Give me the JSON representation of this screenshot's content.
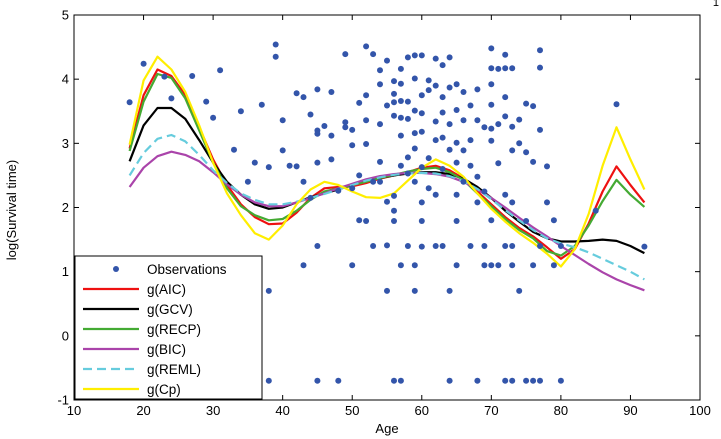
{
  "corner_mark": "1",
  "chart_data": {
    "type": "scatter",
    "title": "",
    "xlabel": "Age",
    "ylabel": "log(Survival time)",
    "xlim": [
      10,
      100
    ],
    "ylim": [
      -1,
      5
    ],
    "xticks": [
      "10",
      "20",
      "30",
      "40",
      "50",
      "60",
      "70",
      "80",
      "90",
      "100"
    ],
    "yticks": [
      "-1",
      "0",
      "1",
      "2",
      "3",
      "4",
      "5"
    ],
    "grid": false,
    "legend_position": "bottom-left",
    "colors": {
      "Observations": "#3355aa",
      "g(AIC)": "#ee1111",
      "g(GCV)": "#000000",
      "g(RECP)": "#44aa33",
      "g(BIC)": "#aa44aa",
      "g(REML)": "#66ccdd",
      "g(Cp)": "#ffee00"
    },
    "scatter": {
      "name": "Observations",
      "points": [
        [
          18,
          3.64
        ],
        [
          20,
          4.24
        ],
        [
          23,
          4.04
        ],
        [
          24,
          3.7
        ],
        [
          27,
          4.05
        ],
        [
          29,
          3.65
        ],
        [
          30,
          3.4
        ],
        [
          31,
          4.14
        ],
        [
          33,
          2.9
        ],
        [
          34,
          3.5
        ],
        [
          35,
          2.4
        ],
        [
          36,
          2.7
        ],
        [
          37,
          3.6
        ],
        [
          38,
          2.63
        ],
        [
          38,
          -0.7
        ],
        [
          38,
          0.7
        ],
        [
          39,
          4.54
        ],
        [
          39,
          4.35
        ],
        [
          40,
          2.89
        ],
        [
          40,
          3.36
        ],
        [
          41,
          2.65
        ],
        [
          42,
          2.64
        ],
        [
          42,
          3.78
        ],
        [
          43,
          3.72
        ],
        [
          43,
          1.1
        ],
        [
          43,
          2.4
        ],
        [
          44,
          2.15
        ],
        [
          44,
          3.45
        ],
        [
          45,
          3.84
        ],
        [
          45,
          3.2
        ],
        [
          45,
          3.15
        ],
        [
          45,
          2.7
        ],
        [
          45,
          1.4
        ],
        [
          45,
          -0.7
        ],
        [
          46,
          3.27
        ],
        [
          47,
          3.12
        ],
        [
          47,
          2.75
        ],
        [
          47,
          3.8
        ],
        [
          48,
          2.26
        ],
        [
          48,
          -0.7
        ],
        [
          49,
          4.39
        ],
        [
          49,
          3.33
        ],
        [
          49,
          3.25
        ],
        [
          50,
          3.21
        ],
        [
          50,
          2.97
        ],
        [
          50,
          2.3
        ],
        [
          50,
          1.1
        ],
        [
          51,
          3.63
        ],
        [
          51,
          2.5
        ],
        [
          51,
          1.8
        ],
        [
          52,
          4.51
        ],
        [
          52,
          3.75
        ],
        [
          52,
          3.36
        ],
        [
          52,
          2.99
        ],
        [
          52,
          1.79
        ],
        [
          53,
          4.39
        ],
        [
          53,
          2.4
        ],
        [
          53,
          1.4
        ],
        [
          54,
          4.14
        ],
        [
          54,
          3.92
        ],
        [
          54,
          3.3
        ],
        [
          54,
          2.71
        ],
        [
          54,
          2.4
        ],
        [
          55,
          4.29
        ],
        [
          55,
          3.59
        ],
        [
          55,
          2.09
        ],
        [
          55,
          1.41
        ],
        [
          55,
          0.7
        ],
        [
          56,
          3.97
        ],
        [
          56,
          3.77
        ],
        [
          56,
          3.64
        ],
        [
          56,
          3.43
        ],
        [
          56,
          2.18
        ],
        [
          56,
          1.95
        ],
        [
          56,
          1.79
        ],
        [
          56,
          -0.7
        ],
        [
          57,
          4.16
        ],
        [
          57,
          3.93
        ],
        [
          57,
          3.66
        ],
        [
          57,
          3.4
        ],
        [
          57,
          3.12
        ],
        [
          57,
          2.65
        ],
        [
          57,
          1.1
        ],
        [
          57,
          -0.7
        ],
        [
          58,
          4.34
        ],
        [
          58,
          3.65
        ],
        [
          58,
          3.38
        ],
        [
          58,
          2.78
        ],
        [
          58,
          2.53
        ],
        [
          58,
          1.4
        ],
        [
          59,
          4.37
        ],
        [
          59,
          4.01
        ],
        [
          59,
          3.51
        ],
        [
          59,
          3.16
        ],
        [
          59,
          2.92
        ],
        [
          59,
          2.4
        ],
        [
          59,
          1.1
        ],
        [
          59,
          0.7
        ],
        [
          60,
          4.37
        ],
        [
          60,
          3.75
        ],
        [
          60,
          3.47
        ],
        [
          60,
          3.18
        ],
        [
          60,
          2.63
        ],
        [
          60,
          2.08
        ],
        [
          60,
          1.79
        ],
        [
          60,
          1.39
        ],
        [
          61,
          3.98
        ],
        [
          61,
          3.83
        ],
        [
          61,
          2.77
        ],
        [
          61,
          2.3
        ],
        [
          62,
          4.32
        ],
        [
          62,
          3.9
        ],
        [
          62,
          3.34
        ],
        [
          62,
          3.05
        ],
        [
          62,
          2.2
        ],
        [
          62,
          1.4
        ],
        [
          63,
          4.22
        ],
        [
          63,
          3.72
        ],
        [
          63,
          3.48
        ],
        [
          63,
          3.09
        ],
        [
          63,
          2.6
        ],
        [
          63,
          1.4
        ],
        [
          64,
          4.34
        ],
        [
          64,
          3.87
        ],
        [
          64,
          3.3
        ],
        [
          64,
          2.9
        ],
        [
          64,
          0.7
        ],
        [
          64,
          -0.7
        ],
        [
          65,
          3.92
        ],
        [
          65,
          3.52
        ],
        [
          65,
          3.01
        ],
        [
          65,
          2.7
        ],
        [
          65,
          2.2
        ],
        [
          65,
          1.79
        ],
        [
          65,
          1.1
        ],
        [
          66,
          3.8
        ],
        [
          66,
          3.36
        ],
        [
          66,
          2.89
        ],
        [
          66,
          2.4
        ],
        [
          67,
          3.59
        ],
        [
          67,
          3.05
        ],
        [
          67,
          2.65
        ],
        [
          67,
          1.4
        ],
        [
          68,
          3.84
        ],
        [
          68,
          3.36
        ],
        [
          68,
          2.48
        ],
        [
          68,
          2.08
        ],
        [
          68,
          -0.7
        ],
        [
          69,
          3.25
        ],
        [
          69,
          2.25
        ],
        [
          69,
          1.4
        ],
        [
          69,
          1.1
        ],
        [
          70,
          4.48
        ],
        [
          70,
          4.17
        ],
        [
          70,
          3.92
        ],
        [
          70,
          3.6
        ],
        [
          70,
          3.23
        ],
        [
          70,
          3.04
        ],
        [
          70,
          1.8
        ],
        [
          70,
          1.1
        ],
        [
          71,
          4.16
        ],
        [
          71,
          3.3
        ],
        [
          71,
          2.69
        ],
        [
          71,
          1.1
        ],
        [
          72,
          4.38
        ],
        [
          72,
          4.17
        ],
        [
          72,
          3.72
        ],
        [
          72,
          3.42
        ],
        [
          72,
          2.2
        ],
        [
          72,
          1.4
        ],
        [
          72,
          -0.7
        ],
        [
          73,
          4.17
        ],
        [
          73,
          3.26
        ],
        [
          73,
          2.89
        ],
        [
          73,
          2.08
        ],
        [
          73,
          1.4
        ],
        [
          73,
          1.1
        ],
        [
          73,
          -0.7
        ],
        [
          74,
          3.37
        ],
        [
          74,
          3.0
        ],
        [
          74,
          0.7
        ],
        [
          75,
          3.62
        ],
        [
          75,
          2.86
        ],
        [
          75,
          1.79
        ],
        [
          75,
          -0.7
        ],
        [
          76,
          3.58
        ],
        [
          76,
          2.71
        ],
        [
          76,
          1.1
        ],
        [
          76,
          -0.7
        ],
        [
          77,
          4.45
        ],
        [
          77,
          4.18
        ],
        [
          77,
          3.21
        ],
        [
          77,
          1.4
        ],
        [
          77,
          -0.7
        ],
        [
          78,
          2.64
        ],
        [
          78,
          2.08
        ],
        [
          79,
          1.8
        ],
        [
          79,
          1.1
        ],
        [
          80,
          1.4
        ],
        [
          80,
          -0.7
        ],
        [
          85,
          1.95
        ],
        [
          88,
          3.61
        ],
        [
          92,
          1.39
        ]
      ]
    },
    "x": [
      18,
      20,
      22,
      24,
      26,
      28,
      30,
      32,
      34,
      36,
      38,
      40,
      42,
      44,
      46,
      48,
      50,
      52,
      54,
      56,
      58,
      60,
      62,
      64,
      66,
      68,
      70,
      72,
      74,
      76,
      78,
      80,
      82,
      84,
      86,
      88,
      90,
      92
    ],
    "series": [
      {
        "name": "g(AIC)",
        "values": [
          2.92,
          3.75,
          4.15,
          4.05,
          3.75,
          3.25,
          2.75,
          2.35,
          2.05,
          1.85,
          1.74,
          1.75,
          1.92,
          2.15,
          2.3,
          2.32,
          2.33,
          2.38,
          2.45,
          2.5,
          2.55,
          2.62,
          2.65,
          2.58,
          2.45,
          2.25,
          2.05,
          1.85,
          1.68,
          1.55,
          1.38,
          1.2,
          1.35,
          1.75,
          2.25,
          2.64,
          2.35,
          2.08
        ]
      },
      {
        "name": "g(GCV)",
        "values": [
          2.72,
          3.28,
          3.55,
          3.55,
          3.38,
          3.05,
          2.7,
          2.4,
          2.2,
          2.05,
          1.98,
          2.0,
          2.08,
          2.16,
          2.22,
          2.28,
          2.35,
          2.42,
          2.46,
          2.5,
          2.53,
          2.55,
          2.55,
          2.52,
          2.45,
          2.32,
          2.15,
          1.95,
          1.78,
          1.62,
          1.52,
          1.47,
          1.47,
          1.48,
          1.5,
          1.48,
          1.4,
          1.29
        ]
      },
      {
        "name": "g(RECP)",
        "values": [
          2.88,
          3.65,
          4.08,
          4.02,
          3.7,
          3.2,
          2.7,
          2.3,
          2.02,
          1.88,
          1.8,
          1.82,
          1.95,
          2.12,
          2.25,
          2.3,
          2.35,
          2.4,
          2.46,
          2.51,
          2.56,
          2.6,
          2.62,
          2.55,
          2.43,
          2.22,
          2.02,
          1.82,
          1.65,
          1.52,
          1.32,
          1.25,
          1.4,
          1.72,
          2.1,
          2.43,
          2.2,
          2.01
        ]
      },
      {
        "name": "g(BIC)",
        "values": [
          2.32,
          2.62,
          2.8,
          2.87,
          2.82,
          2.72,
          2.55,
          2.36,
          2.2,
          2.08,
          2.02,
          2.02,
          2.08,
          2.15,
          2.22,
          2.3,
          2.37,
          2.44,
          2.49,
          2.52,
          2.54,
          2.54,
          2.52,
          2.48,
          2.4,
          2.28,
          2.15,
          2.0,
          1.84,
          1.69,
          1.55,
          1.4,
          1.26,
          1.12,
          0.99,
          0.88,
          0.79,
          0.71
        ]
      },
      {
        "name": "g(REML)",
        "values": [
          2.5,
          2.85,
          3.07,
          3.13,
          3.03,
          2.82,
          2.58,
          2.38,
          2.22,
          2.12,
          2.05,
          2.05,
          2.09,
          2.15,
          2.21,
          2.28,
          2.35,
          2.42,
          2.47,
          2.51,
          2.53,
          2.54,
          2.53,
          2.49,
          2.41,
          2.29,
          2.13,
          1.96,
          1.8,
          1.65,
          1.52,
          1.44,
          1.38,
          1.3,
          1.2,
          1.1,
          1.0,
          0.88
        ]
      },
      {
        "name": "g(Cp)",
        "values": [
          2.98,
          3.98,
          4.35,
          4.15,
          3.8,
          3.28,
          2.7,
          2.22,
          1.88,
          1.6,
          1.5,
          1.72,
          2.05,
          2.28,
          2.4,
          2.35,
          2.25,
          2.16,
          2.15,
          2.22,
          2.42,
          2.62,
          2.75,
          2.65,
          2.48,
          2.22,
          1.98,
          1.78,
          1.6,
          1.45,
          1.28,
          1.08,
          1.35,
          1.9,
          2.65,
          3.25,
          2.75,
          2.28
        ]
      }
    ]
  }
}
